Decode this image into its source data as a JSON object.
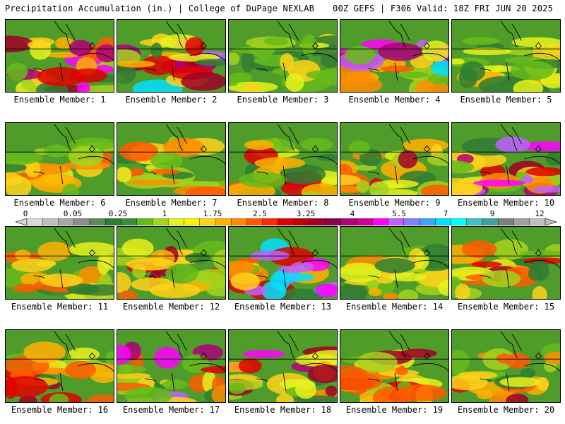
{
  "header": {
    "left_title": "Precipitation Accumulation (in.) | College of DuPage NEXLAB",
    "right_title": "00Z GEFS | F306 Valid: 18Z FRI JUN 20 2025"
  },
  "legend": {
    "tick_labels": [
      "0",
      "0.05",
      "0.25",
      "1",
      "1.75",
      "2.5",
      "3.25",
      "4",
      "5.5",
      "7",
      "9",
      "12"
    ],
    "colors": [
      "#d9d9d9",
      "#bfbfbf",
      "#a6a6a6",
      "#8c8c8c",
      "#5a8a5a",
      "#2e7d32",
      "#388e3c",
      "#66bb1a",
      "#a4d41c",
      "#e6f21c",
      "#fff200",
      "#ffd21a",
      "#ffb000",
      "#ff8c00",
      "#ff5a00",
      "#ff2a00",
      "#e00000",
      "#c00000",
      "#a00028",
      "#8a0050",
      "#b0007a",
      "#d0009a",
      "#ff00ff",
      "#c060ff",
      "#8080ff",
      "#40a0ff",
      "#00e0ff",
      "#00ffff",
      "#40c0c0",
      "#40a0a0",
      "#808080",
      "#a0a0a0",
      "#c0c0c0"
    ]
  },
  "members": [
    {
      "label": "Ensemble Member: 1",
      "intensity": 0.7
    },
    {
      "label": "Ensemble Member: 2",
      "intensity": 0.9
    },
    {
      "label": "Ensemble Member: 3",
      "intensity": 0.3
    },
    {
      "label": "Ensemble Member: 4",
      "intensity": 0.85
    },
    {
      "label": "Ensemble Member: 5",
      "intensity": 0.35
    },
    {
      "label": "Ensemble Member: 6",
      "intensity": 0.45
    },
    {
      "label": "Ensemble Member: 7",
      "intensity": 0.5
    },
    {
      "label": "Ensemble Member: 8",
      "intensity": 0.6
    },
    {
      "label": "Ensemble Member: 9",
      "intensity": 0.55
    },
    {
      "label": "Ensemble Member: 10",
      "intensity": 0.8
    },
    {
      "label": "Ensemble Member: 11",
      "intensity": 0.5
    },
    {
      "label": "Ensemble Member: 12",
      "intensity": 0.6
    },
    {
      "label": "Ensemble Member: 13",
      "intensity": 0.85
    },
    {
      "label": "Ensemble Member: 14",
      "intensity": 0.4
    },
    {
      "label": "Ensemble Member: 15",
      "intensity": 0.55
    },
    {
      "label": "Ensemble Member: 16",
      "intensity": 0.55
    },
    {
      "label": "Ensemble Member: 17",
      "intensity": 0.8
    },
    {
      "label": "Ensemble Member: 18",
      "intensity": 0.7
    },
    {
      "label": "Ensemble Member: 19",
      "intensity": 0.55
    },
    {
      "label": "Ensemble Member: 20",
      "intensity": 0.55
    }
  ]
}
